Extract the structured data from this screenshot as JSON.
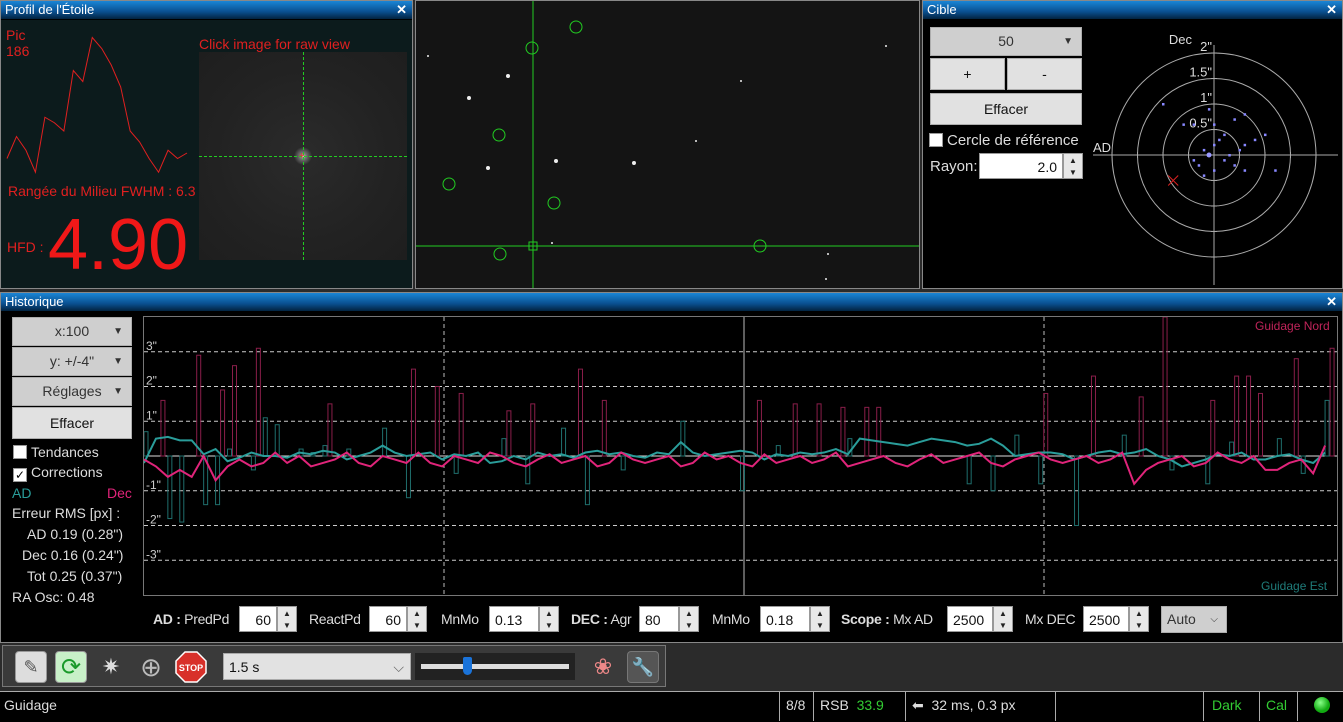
{
  "profile": {
    "title": "Profil de l'Étoile",
    "peak_label": "Pic",
    "peak_value": "186",
    "raw_hint": "Click image for raw view",
    "fwhm": "Rangée du Milieu FWHM : 6.3",
    "hfd_label": "HFD :",
    "hfd_value": "4.90",
    "curve": [
      30,
      70,
      45,
      5,
      105,
      95,
      80,
      190,
      170,
      250,
      230,
      200,
      160,
      80,
      60,
      30,
      5,
      45,
      30,
      40
    ]
  },
  "target": {
    "title": "Cible",
    "length": "50",
    "plus": "+",
    "minus": "-",
    "clear": "Effacer",
    "ref_circle": "Cercle de référence",
    "radius_label": "Rayon:",
    "radius_value": "2.0",
    "axis_dec": "Dec",
    "axis_ra": "AD",
    "ring_labels": [
      "0.5\"",
      "1\"",
      "1.5\"",
      "2\""
    ],
    "points": [
      [
        -0.5,
        0.5
      ],
      [
        -0.2,
        0.3
      ],
      [
        0,
        0.3
      ],
      [
        0.2,
        0.35
      ],
      [
        0.3,
        0.4
      ],
      [
        0.1,
        0.2
      ],
      [
        0.4,
        0.15
      ],
      [
        0.3,
        0.1
      ],
      [
        0,
        0.1
      ],
      [
        -0.1,
        0.05
      ],
      [
        0.1,
        -0.05
      ],
      [
        0.2,
        -0.1
      ],
      [
        0.3,
        -0.15
      ],
      [
        -0.15,
        -0.1
      ],
      [
        0,
        -0.15
      ],
      [
        0.6,
        -0.15
      ],
      [
        -0.3,
        0.3
      ],
      [
        0.5,
        0.2
      ],
      [
        -0.05,
        0.45
      ],
      [
        0.15,
        0
      ],
      [
        0.25,
        0.05
      ],
      [
        -0.2,
        -0.05
      ],
      [
        0.05,
        0.15
      ],
      [
        -0.1,
        -0.2
      ]
    ],
    "center_marker": [
      -0.4,
      -0.25
    ]
  },
  "history": {
    "title": "Historique",
    "x_scale": "x:100",
    "y_scale": "y: +/-4\"",
    "settings": "Réglages",
    "clear": "Effacer",
    "trends": "Tendances",
    "corrections": "Corrections",
    "trends_checked": false,
    "corrections_checked": true,
    "legend_ra": "AD",
    "legend_dec": "Dec",
    "rms_title": "Erreur RMS [px] :",
    "rms_ra": "AD 0.19 (0.28\")",
    "rms_dec": "Dec 0.16 (0.24\")",
    "rms_tot": "Tot 0.25 (0.37\")",
    "ra_osc": "RA Osc: 0.48",
    "label_north": "Guidage Nord",
    "label_east": "Guidage Est",
    "colors": {
      "ra": "#2a9d9a",
      "dec": "#e0247a"
    }
  },
  "chart_data": {
    "type": "line",
    "ylim": [
      -4,
      4
    ],
    "y_ticks": [
      "3\"",
      "2\"",
      "1\"",
      "-1\"",
      "-2\"",
      "-3\""
    ],
    "y_tick_values": [
      3,
      2,
      1,
      -1,
      -2,
      -3
    ],
    "ra": [
      -0.2,
      0.5,
      0.55,
      0.45,
      0.45,
      0.05,
      0.2,
      -0.15,
      -0.05,
      0.1,
      0,
      0,
      -0.05,
      0.1,
      0.05,
      0.15,
      0.1,
      -0.1,
      0,
      0.1,
      0.3,
      0.1,
      0,
      0.05,
      0.1,
      -0.1,
      0.05,
      0,
      0.1,
      -0.2,
      -0.15,
      0,
      -0.1,
      0.1,
      0,
      0.05,
      -0.05,
      0.1,
      0.15,
      0.05,
      0.1,
      0,
      -0.05,
      0.1,
      0.05,
      0.4,
      0.1,
      0,
      0.05,
      0.1,
      0.15,
      0.1,
      -0.1,
      0.05,
      0,
      0.1,
      0.05,
      0.1,
      0.2,
      0.05,
      0.5,
      0.45,
      0.4,
      0.35,
      0.3,
      0.4,
      0.5,
      0.45,
      0.4,
      0.3,
      0.35,
      0.5,
      0.3,
      0,
      0.05,
      0.1,
      0.1,
      0.05,
      -0.1,
      0,
      0.1,
      0.15,
      0.05,
      0.1,
      0.2,
      0,
      -0.1,
      -0.3,
      -0.2,
      -0.1,
      0.05,
      0,
      0.1,
      -0.1,
      -0.1,
      0,
      0.05,
      -0.1,
      -0.2,
      0.1
    ],
    "dec": [
      -0.1,
      -0.3,
      -0.6,
      -0.4,
      -0.6,
      0,
      -0.7,
      -0.3,
      -0.1,
      -0.3,
      -0.2,
      0.1,
      -0.2,
      0,
      -0.3,
      -0.2,
      -0.1,
      0.1,
      -0.2,
      -0.3,
      0,
      -0.1,
      -0.2,
      0.1,
      -0.2,
      -0.3,
      0,
      -0.1,
      -0.2,
      0.1,
      0,
      -0.2,
      -0.3,
      -0.1,
      0.05,
      -0.2,
      -0.1,
      0,
      -0.3,
      -0.2,
      0.1,
      -0.1,
      -0.2,
      -0.1,
      0,
      -0.3,
      -0.2,
      0.1,
      -0.1,
      0,
      -0.2,
      -0.3,
      0.05,
      -0.2,
      -0.1,
      0,
      -0.2,
      -0.1,
      0.1,
      -0.3,
      -0.2,
      -0.1,
      0,
      -0.2,
      -0.3,
      -0.1,
      0.05,
      -0.2,
      -0.1,
      0,
      0.1,
      -0.2,
      -0.3,
      -0.1,
      0,
      0.1,
      -0.1,
      -0.2,
      -0.1,
      0,
      -0.2,
      -0.1,
      0.1,
      -0.8,
      -0.4,
      -0.2,
      -0.1,
      0,
      -0.3,
      -0.2,
      0.1,
      -0.1,
      -0.2,
      0,
      -0.4,
      -0.4,
      -0.2,
      -0.1,
      -0.5,
      0.3
    ],
    "ra_corr": [
      0.7,
      0,
      -1.8,
      -1.9,
      0,
      -1.4,
      -1.4,
      0.2,
      0,
      -0.4,
      1.1,
      0.9,
      0,
      0.2,
      0.1,
      0.3,
      0,
      0.2,
      0,
      0,
      0.8,
      0,
      -1.2,
      0,
      0,
      0,
      -0.5,
      0,
      0,
      0,
      0.5,
      0,
      -0.8,
      0,
      0,
      0.8,
      0,
      -1.4,
      0,
      0,
      -0.4,
      0,
      0,
      0,
      0,
      1,
      0,
      0,
      0,
      0,
      -1,
      0,
      0,
      0.3,
      0,
      0,
      0,
      0,
      0,
      0.5,
      0,
      0,
      0,
      0,
      0,
      0,
      0,
      0,
      0,
      -0.8,
      0,
      -1,
      0,
      0.6,
      0,
      -0.8,
      0,
      0,
      -2,
      0,
      0,
      0,
      0.6,
      0,
      0,
      0,
      -0.4,
      0,
      0,
      -0.8,
      0,
      0.4,
      0,
      0,
      0,
      0.5,
      0,
      -0.5,
      0,
      1.6
    ],
    "dec_corr": [
      0,
      1.6,
      0,
      0,
      2.9,
      0,
      1.9,
      2.6,
      0,
      3.1,
      0,
      0,
      0,
      0,
      0,
      1.5,
      0,
      0,
      0,
      0,
      0,
      0,
      2.5,
      0,
      2,
      0,
      1.8,
      0,
      0,
      0,
      1.3,
      0,
      1.5,
      0,
      0,
      0,
      2.5,
      0,
      1.6,
      0,
      0,
      0,
      0,
      0,
      0,
      0,
      0,
      0,
      0,
      0,
      0,
      1.6,
      0,
      0,
      1.5,
      0,
      1.5,
      0,
      1.4,
      0,
      1.4,
      1.4,
      0,
      0,
      0,
      0,
      0,
      0,
      0,
      0,
      0,
      0,
      0,
      0,
      0,
      1.8,
      0,
      0,
      0,
      2.3,
      0,
      0,
      0,
      1.7,
      0,
      4.2,
      0,
      0,
      0,
      1.6,
      0,
      2.3,
      2.3,
      1.8,
      0,
      0,
      2.8,
      0,
      0,
      3.1
    ]
  },
  "algo": {
    "ra_label": "AD :",
    "predpd_label": "PredPd",
    "predpd": "60",
    "reactpd_label": "ReactPd",
    "reactpd": "60",
    "ra_mnmo_label": "MnMo",
    "ra_mnmo": "0.13",
    "dec_label": "DEC :",
    "agr_label": "Agr",
    "agr": "80",
    "dec_mnmo_label": "MnMo",
    "dec_mnmo": "0.18",
    "scope_label": "Scope :",
    "mxad_label": "Mx AD",
    "mxad": "2500",
    "mxdec_label": "Mx DEC",
    "mxdec": "2500",
    "dec_mode": "Auto"
  },
  "toolbar": {
    "exposure": "1.5 s",
    "gamma": 0.14,
    "stop": "STOP"
  },
  "status": {
    "message": "Guidage",
    "frames": "8/8",
    "snr_label": "RSB",
    "snr": "33.9",
    "pulse": "32 ms, 0.3 px",
    "dark": "Dark",
    "cal": "Cal"
  }
}
